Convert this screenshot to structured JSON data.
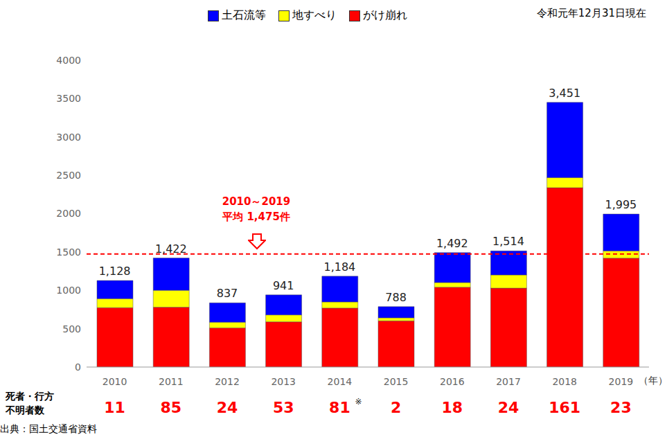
{
  "chart_data": {
    "type": "bar",
    "stacked": true,
    "subtitle": "令和元年12月31日現在",
    "source": "出典：国土交通省資料",
    "x_label": "（年）",
    "categories": [
      "2010",
      "2011",
      "2012",
      "2013",
      "2014",
      "2015",
      "2016",
      "2017",
      "2018",
      "2019"
    ],
    "series": [
      {
        "name": "土石流等",
        "color": "#0000ff",
        "values": [
          237,
          421,
          252,
          261,
          335,
          146,
          390,
          313,
          982,
          481
        ]
      },
      {
        "name": "地すべり",
        "color": "#ffff00",
        "values": [
          116,
          221,
          74,
          90,
          80,
          40,
          61,
          172,
          131,
          94
        ]
      },
      {
        "name": "がけ崩れ",
        "color": "#ff0000",
        "values": [
          775,
          780,
          511,
          590,
          769,
          602,
          1041,
          1029,
          2338,
          1420
        ]
      }
    ],
    "totals": {
      "values": [
        1128,
        1422,
        837,
        941,
        1184,
        788,
        1492,
        1514,
        3451,
        1995
      ],
      "value_labels": [
        "1,128",
        "1,422",
        "837",
        "941",
        "1,184",
        "788",
        "1,492",
        "1,514",
        "3,451",
        "1,995"
      ]
    },
    "average": {
      "value": 1475,
      "label": [
        "2010～2019",
        "平均 1,475件"
      ],
      "color": "#ff0000",
      "line_style": "dashed"
    },
    "deaths": {
      "label": [
        "死者・行方",
        "不明者数"
      ],
      "values": [
        11,
        85,
        24,
        53,
        81,
        2,
        18,
        24,
        161,
        23
      ],
      "notes": [
        null,
        null,
        null,
        null,
        "※",
        null,
        null,
        null,
        null,
        null
      ],
      "color": "#ff0000"
    },
    "ylim": [
      0,
      4000
    ],
    "yticks": [
      0,
      500,
      1000,
      1500,
      2000,
      2500,
      3000,
      3500,
      4000
    ],
    "grid": false,
    "legend": "top"
  }
}
